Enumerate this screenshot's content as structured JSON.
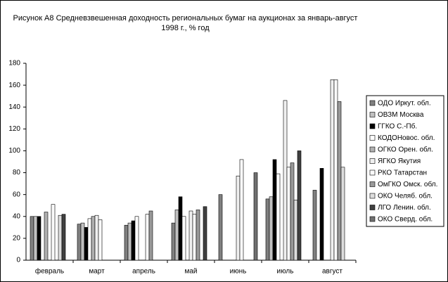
{
  "chart_data": {
    "type": "bar",
    "title": "Рисунок А8 Средневзвешенная доходность региональных бумаг на аукционах  за январь-август 1998 г., % год",
    "categories": [
      "февраль",
      "март",
      "апрель",
      "май",
      "июнь",
      "июль",
      "август"
    ],
    "ylim": [
      0,
      180
    ],
    "yticks": [
      0,
      20,
      40,
      60,
      80,
      100,
      120,
      140,
      160,
      180
    ],
    "series": [
      {
        "name": "ОДО Иркут. обл.",
        "color": "#808080",
        "values": [
          40,
          33,
          32,
          34,
          60,
          56,
          64
        ]
      },
      {
        "name": "ОВЗМ Москва",
        "color": "#c0c0c0",
        "values": [
          40,
          34,
          34,
          46,
          null,
          58,
          null
        ]
      },
      {
        "name": "ГГКО С.-Пб.",
        "color": "#000000",
        "values": [
          40,
          30,
          36,
          58,
          null,
          92,
          84
        ]
      },
      {
        "name": "КОДОНовос. обл.",
        "color": "#ffffff",
        "values": [
          null,
          38,
          40,
          40,
          null,
          79,
          null
        ]
      },
      {
        "name": "ОГКО Орен. обл.",
        "color": "#b0b0b0",
        "values": [
          44,
          40,
          null,
          null,
          null,
          null,
          null
        ]
      },
      {
        "name": "ЯГКО Якутия",
        "color": "#f0f0f0",
        "values": [
          null,
          41,
          null,
          45,
          77,
          146,
          165
        ]
      },
      {
        "name": "РКО Татарстан",
        "color": "#fafafa",
        "values": [
          51,
          37,
          42,
          42,
          92,
          85,
          165
        ]
      },
      {
        "name": "ОмГКО Омск. обл.",
        "color": "#999999",
        "values": [
          null,
          null,
          45,
          46,
          null,
          89,
          145
        ]
      },
      {
        "name": "ОКО Челяб. обл.",
        "color": "#dddddd",
        "values": [
          41,
          null,
          null,
          null,
          null,
          55,
          85
        ]
      },
      {
        "name": "ЛГО Ленин. обл.",
        "color": "#404040",
        "values": [
          42,
          null,
          null,
          49,
          null,
          100,
          null
        ]
      },
      {
        "name": "ОКО Сверд. обл.",
        "color": "#707070",
        "values": [
          null,
          null,
          null,
          null,
          80,
          null,
          null
        ]
      }
    ]
  }
}
